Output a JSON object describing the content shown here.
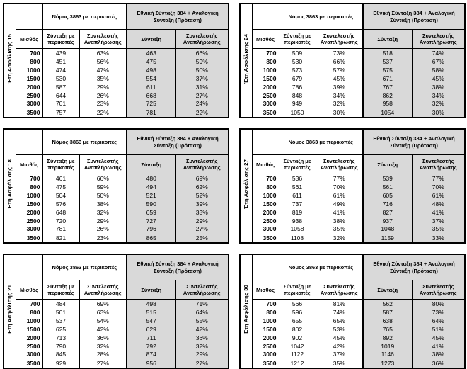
{
  "headers": {
    "group_left": "Νόμος 3863 με περικοπές",
    "group_right": "Εθνική Σύνταξη 384 + Αναλογική Σύνταξη (Πρόταση)",
    "salary": "Μισθός",
    "pension_cuts": "Σύνταξη με περικοπές",
    "replacement_rate": "Συντελεστής Αναπλήρωσης",
    "pension": "Σύνταξη",
    "replacement_rate_2": "Συντελεστής Αναπλήρωσης"
  },
  "colors": {
    "header_fill": "#d9d9d9",
    "border": "#000000",
    "background": "#ffffff"
  },
  "tables": [
    {
      "years_label": "Έτη Ασφάλισης  15",
      "rows": [
        [
          "700",
          "439",
          "63%",
          "463",
          "66%"
        ],
        [
          "800",
          "451",
          "56%",
          "475",
          "59%"
        ],
        [
          "1000",
          "474",
          "47%",
          "498",
          "50%"
        ],
        [
          "1500",
          "530",
          "35%",
          "554",
          "37%"
        ],
        [
          "2000",
          "587",
          "29%",
          "611",
          "31%"
        ],
        [
          "2500",
          "644",
          "26%",
          "668",
          "27%"
        ],
        [
          "3000",
          "701",
          "23%",
          "725",
          "24%"
        ],
        [
          "3500",
          "757",
          "22%",
          "781",
          "22%"
        ]
      ]
    },
    {
      "years_label": "Έτη Ασφάλισης  24",
      "rows": [
        [
          "700",
          "509",
          "73%",
          "518",
          "74%"
        ],
        [
          "800",
          "530",
          "66%",
          "537",
          "67%"
        ],
        [
          "1000",
          "573",
          "57%",
          "575",
          "58%"
        ],
        [
          "1500",
          "679",
          "45%",
          "671",
          "45%"
        ],
        [
          "2000",
          "786",
          "39%",
          "767",
          "38%"
        ],
        [
          "2500",
          "848",
          "34%",
          "862",
          "34%"
        ],
        [
          "3000",
          "949",
          "32%",
          "958",
          "32%"
        ],
        [
          "3500",
          "1050",
          "30%",
          "1054",
          "30%"
        ]
      ]
    },
    {
      "years_label": "Έτη Ασφάλισης  18",
      "rows": [
        [
          "700",
          "461",
          "66%",
          "480",
          "69%"
        ],
        [
          "800",
          "475",
          "59%",
          "494",
          "62%"
        ],
        [
          "1000",
          "504",
          "50%",
          "521",
          "52%"
        ],
        [
          "1500",
          "576",
          "38%",
          "590",
          "39%"
        ],
        [
          "2000",
          "648",
          "32%",
          "659",
          "33%"
        ],
        [
          "2500",
          "720",
          "29%",
          "727",
          "29%"
        ],
        [
          "3000",
          "781",
          "26%",
          "796",
          "27%"
        ],
        [
          "3500",
          "821",
          "23%",
          "865",
          "25%"
        ]
      ]
    },
    {
      "years_label": "Έτη Ασφάλισης  27",
      "rows": [
        [
          "700",
          "536",
          "77%",
          "539",
          "77%"
        ],
        [
          "800",
          "561",
          "70%",
          "561",
          "70%"
        ],
        [
          "1000",
          "611",
          "61%",
          "605",
          "61%"
        ],
        [
          "1500",
          "737",
          "49%",
          "716",
          "48%"
        ],
        [
          "2000",
          "819",
          "41%",
          "827",
          "41%"
        ],
        [
          "2500",
          "938",
          "38%",
          "937",
          "37%"
        ],
        [
          "3000",
          "1058",
          "35%",
          "1048",
          "35%"
        ],
        [
          "3500",
          "1108",
          "32%",
          "1159",
          "33%"
        ]
      ]
    },
    {
      "years_label": "Έτη Ασφάλισης  21",
      "rows": [
        [
          "700",
          "484",
          "69%",
          "498",
          "71%"
        ],
        [
          "800",
          "501",
          "63%",
          "515",
          "64%"
        ],
        [
          "1000",
          "537",
          "54%",
          "547",
          "55%"
        ],
        [
          "1500",
          "625",
          "42%",
          "629",
          "42%"
        ],
        [
          "2000",
          "713",
          "36%",
          "711",
          "36%"
        ],
        [
          "2500",
          "790",
          "32%",
          "792",
          "32%"
        ],
        [
          "3000",
          "845",
          "28%",
          "874",
          "29%"
        ],
        [
          "3500",
          "929",
          "27%",
          "956",
          "27%"
        ]
      ]
    },
    {
      "years_label": "Έτη Ασφάλισης  30",
      "rows": [
        [
          "700",
          "566",
          "81%",
          "562",
          "80%"
        ],
        [
          "800",
          "596",
          "74%",
          "587",
          "73%"
        ],
        [
          "1000",
          "655",
          "65%",
          "638",
          "64%"
        ],
        [
          "1500",
          "802",
          "53%",
          "765",
          "51%"
        ],
        [
          "2000",
          "902",
          "45%",
          "892",
          "45%"
        ],
        [
          "2500",
          "1042",
          "42%",
          "1019",
          "41%"
        ],
        [
          "3000",
          "1122",
          "37%",
          "1146",
          "38%"
        ],
        [
          "3500",
          "1212",
          "35%",
          "1273",
          "36%"
        ]
      ]
    }
  ]
}
